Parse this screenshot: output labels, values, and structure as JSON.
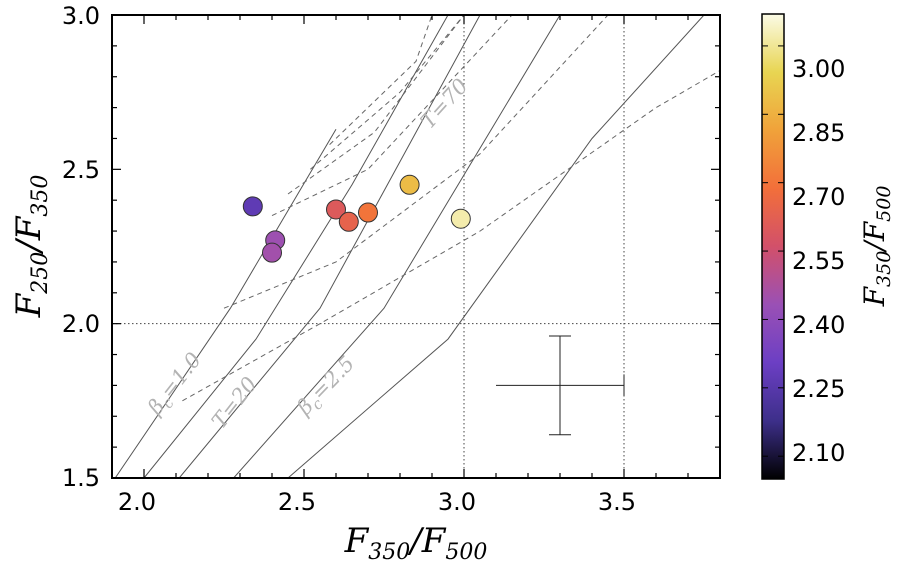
{
  "chart_data": {
    "type": "scatter",
    "xlabel": {
      "base": "F",
      "sub1": "350",
      "slash": "/",
      "sub2": "500"
    },
    "ylabel": {
      "base": "F",
      "sub1": "250",
      "slash": "/",
      "sub2": "350"
    },
    "colorbar_label": {
      "base": "F",
      "sub1": "350",
      "slash": "/",
      "sub2": "500"
    },
    "xlim": [
      1.9,
      3.8
    ],
    "ylim": [
      1.5,
      3.0
    ],
    "xticks": [
      "2.0",
      "2.5",
      "3.0",
      "3.5"
    ],
    "yticks": [
      "1.5",
      "2.0",
      "2.5",
      "3.0"
    ],
    "colorbar_ticks": [
      "2.10",
      "2.25",
      "2.40",
      "2.55",
      "2.70",
      "2.85",
      "3.00"
    ],
    "colorbar_range": [
      2.05,
      3.07
    ],
    "colormap": [
      "#000000",
      "#3d2f8a",
      "#6c3fc4",
      "#9a50b5",
      "#d2506a",
      "#f26f3a",
      "#f0a23a",
      "#e8d552",
      "#fbfbe6"
    ],
    "points": [
      {
        "x": 2.34,
        "y": 2.38,
        "c": 2.27
      },
      {
        "x": 2.41,
        "y": 2.27,
        "c": 2.44
      },
      {
        "x": 2.4,
        "y": 2.23,
        "c": 2.45
      },
      {
        "x": 2.6,
        "y": 2.37,
        "c": 2.6
      },
      {
        "x": 2.64,
        "y": 2.33,
        "c": 2.64
      },
      {
        "x": 2.7,
        "y": 2.36,
        "c": 2.7
      },
      {
        "x": 2.83,
        "y": 2.45,
        "c": 2.88
      },
      {
        "x": 2.99,
        "y": 2.34,
        "c": 3.02
      }
    ],
    "reference_lines": {
      "x": [
        3.0,
        3.5
      ],
      "y": 2.0
    },
    "error_bar": {
      "x": 3.3,
      "y": 1.8,
      "xerr_low": 0.2,
      "xerr_high": 0.2,
      "yerr": 0.16
    },
    "annotations": [
      {
        "base": "β",
        "sub": "c",
        "eq": "=1.0"
      },
      {
        "base": "β",
        "sub": "c",
        "eq": "=2.5"
      },
      {
        "text": "T=20"
      },
      {
        "text": "T=70"
      }
    ]
  }
}
